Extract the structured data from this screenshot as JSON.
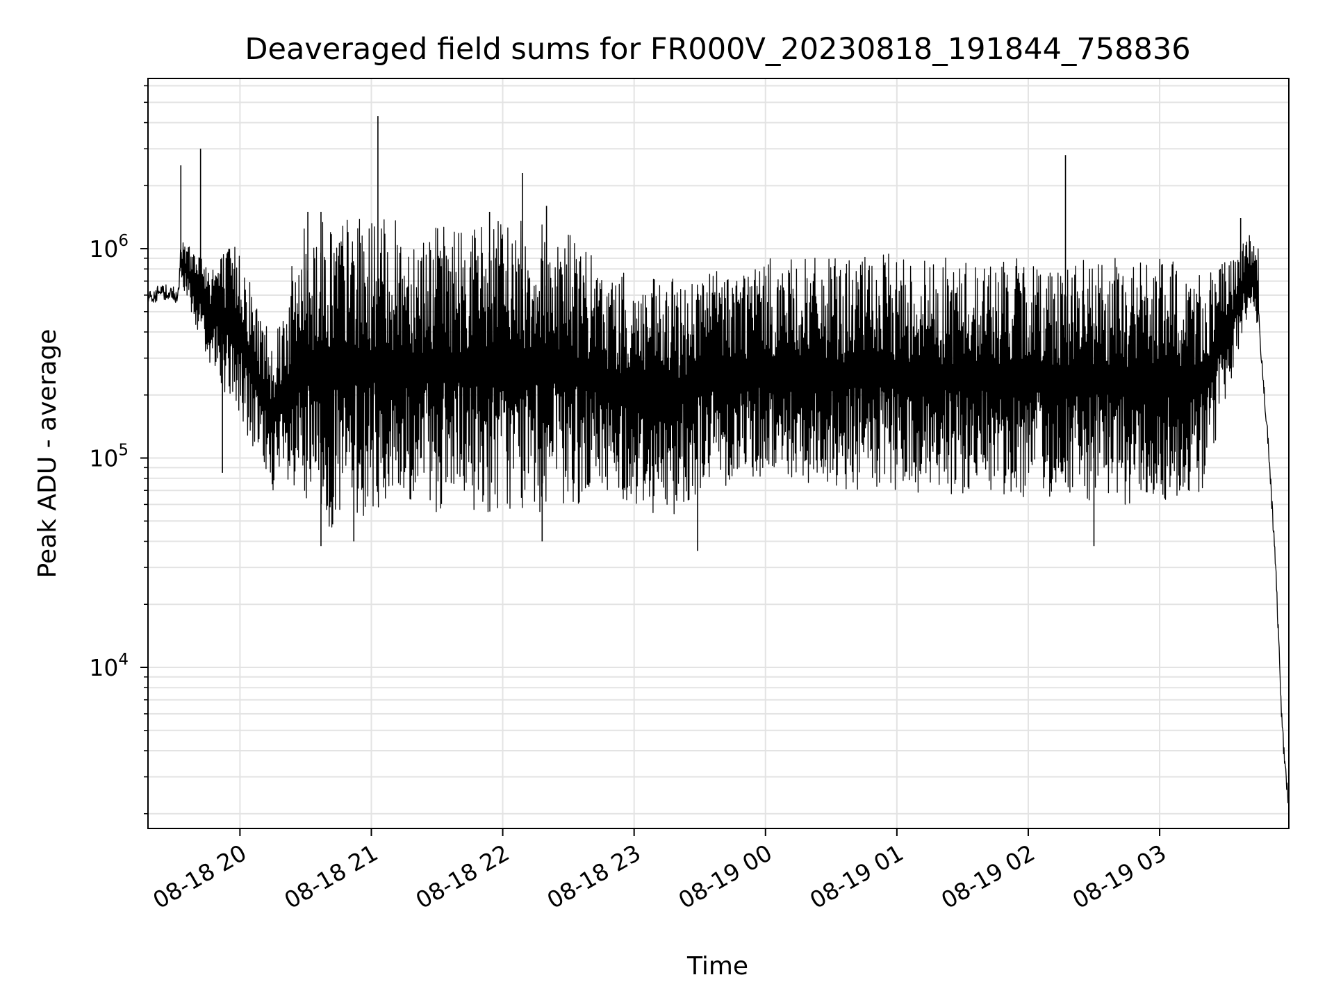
{
  "chart_data": {
    "type": "line",
    "title": "Deaveraged field sums for FR000V_20230818_191844_758836",
    "xlabel": "Time",
    "ylabel": "Peak ADU - average",
    "x_range": [
      "2023-08-18 19:18",
      "2023-08-19 03:59"
    ],
    "y_scale": "log",
    "ylim": [
      1700,
      6500000
    ],
    "grid": true,
    "line_color": "#000000",
    "x_tick_labels": [
      "08-18 20",
      "08-18 21",
      "08-18 22",
      "08-18 23",
      "08-19 00",
      "08-19 01",
      "08-19 02",
      "08-19 03"
    ],
    "x_tick_times": [
      "2023-08-18 20:00",
      "2023-08-18 21:00",
      "2023-08-18 22:00",
      "2023-08-18 23:00",
      "2023-08-19 00:00",
      "2023-08-19 01:00",
      "2023-08-19 02:00",
      "2023-08-19 03:00"
    ],
    "y_ticks": [
      {
        "value": 10000,
        "base": "10",
        "exp": "4"
      },
      {
        "value": 100000,
        "base": "10",
        "exp": "5"
      },
      {
        "value": 1000000,
        "base": "10",
        "exp": "6"
      }
    ],
    "series": [
      {
        "x": [
          "2023-08-18 19:18",
          "2023-08-18 19:25",
          "2023-08-18 19:32",
          "2023-08-18 19:33",
          "2023-08-18 19:40",
          "2023-08-18 19:45",
          "2023-08-18 19:52",
          "2023-08-18 20:00",
          "2023-08-18 20:07",
          "2023-08-18 20:15",
          "2023-08-18 20:30",
          "2023-08-18 20:45",
          "2023-08-18 21:00",
          "2023-08-18 21:30",
          "2023-08-18 22:00",
          "2023-08-18 22:30",
          "2023-08-18 23:00",
          "2023-08-18 23:30",
          "2023-08-19 00:00",
          "2023-08-19 00:30",
          "2023-08-19 01:00",
          "2023-08-19 01:30",
          "2023-08-19 02:00",
          "2023-08-19 02:30",
          "2023-08-19 03:00",
          "2023-08-19 03:20",
          "2023-08-19 03:35",
          "2023-08-19 03:41",
          "2023-08-19 03:45",
          "2023-08-19 03:50",
          "2023-08-19 03:53",
          "2023-08-19 03:56",
          "2023-08-19 03:59"
        ],
        "y": [
          600000,
          620000,
          600000,
          1000000,
          900000,
          700000,
          800000,
          400000,
          180000,
          90000,
          60000,
          55000,
          60000,
          300000,
          350000,
          300000,
          150000,
          120000,
          250000,
          200000,
          200000,
          220000,
          220000,
          180000,
          150000,
          200000,
          500000,
          800000,
          500000,
          100000,
          30000,
          5000,
          2100
        ]
      }
    ],
    "y_band": {
      "x": [
        "2023-08-18 19:33",
        "2023-08-18 19:45",
        "2023-08-18 20:00",
        "2023-08-18 20:07",
        "2023-08-18 20:15",
        "2023-08-18 20:30",
        "2023-08-18 20:45",
        "2023-08-18 21:00",
        "2023-08-18 21:30",
        "2023-08-18 22:00",
        "2023-08-18 22:30",
        "2023-08-18 22:45",
        "2023-08-18 23:15",
        "2023-08-18 23:30",
        "2023-08-19 00:00",
        "2023-08-19 00:30",
        "2023-08-19 01:00",
        "2023-08-19 01:30",
        "2023-08-19 02:00",
        "2023-08-19 02:30",
        "2023-08-19 03:00",
        "2023-08-19 03:20",
        "2023-08-19 03:35",
        "2023-08-19 03:41",
        "2023-08-19 03:45"
      ],
      "low": [
        700000,
        300000,
        150000,
        100000,
        70000,
        50000,
        45000,
        55000,
        55000,
        55000,
        55000,
        70000,
        50000,
        70000,
        80000,
        70000,
        65000,
        65000,
        65000,
        60000,
        60000,
        70000,
        300000,
        500000,
        400000
      ],
      "high": [
        1100000,
        900000,
        1100000,
        600000,
        400000,
        1400000,
        1450000,
        1400000,
        1300000,
        1400000,
        1300000,
        800000,
        700000,
        800000,
        900000,
        900000,
        950000,
        900000,
        900000,
        900000,
        900000,
        800000,
        900000,
        1300000,
        1000000
      ]
    },
    "spikes": [
      {
        "x": "2023-08-18 19:33",
        "y": 2500000
      },
      {
        "x": "2023-08-18 19:42",
        "y": 3000000
      },
      {
        "x": "2023-08-18 20:31",
        "y": 1500000
      },
      {
        "x": "2023-08-18 20:37",
        "y": 1500000
      },
      {
        "x": "2023-08-18 21:03",
        "y": 4300000
      },
      {
        "x": "2023-08-18 21:54",
        "y": 1500000
      },
      {
        "x": "2023-08-18 22:09",
        "y": 2300000
      },
      {
        "x": "2023-08-18 22:20",
        "y": 1600000
      },
      {
        "x": "2023-08-19 02:17",
        "y": 2800000
      },
      {
        "x": "2023-08-19 03:37",
        "y": 1400000
      }
    ],
    "dips": [
      {
        "x": "2023-08-18 19:52",
        "y": 85000
      },
      {
        "x": "2023-08-18 20:37",
        "y": 38000
      },
      {
        "x": "2023-08-18 20:52",
        "y": 40000
      },
      {
        "x": "2023-08-18 22:18",
        "y": 40000
      },
      {
        "x": "2023-08-18 23:29",
        "y": 36000
      },
      {
        "x": "2023-08-19 02:30",
        "y": 38000
      }
    ]
  }
}
